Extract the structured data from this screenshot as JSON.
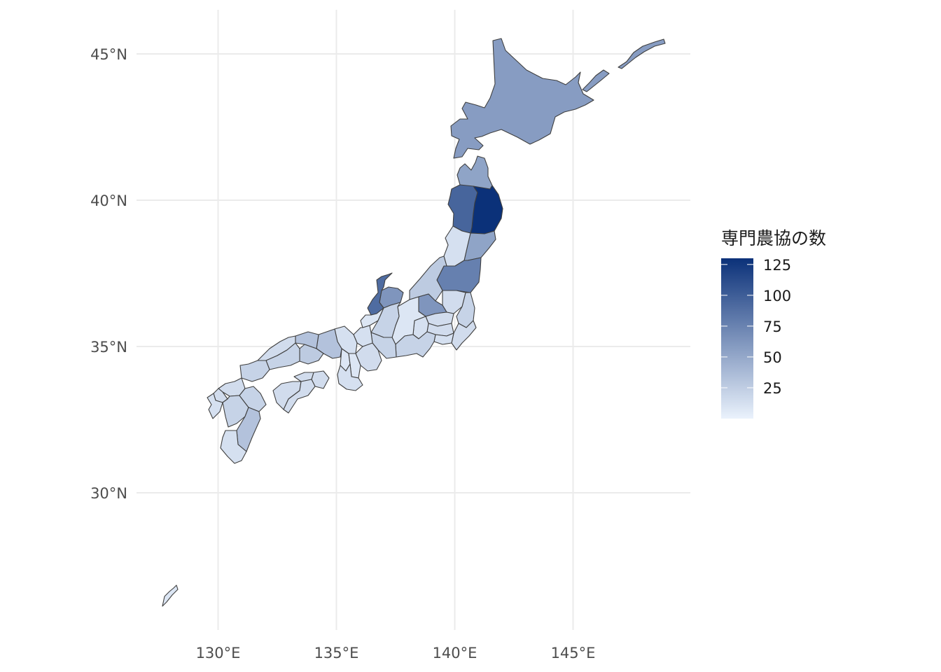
{
  "map": {
    "type": "choropleth",
    "region": "Japan",
    "projection": "equirectangular",
    "lon_range": [
      126.6,
      149.6
    ],
    "lat_range": [
      25.2,
      46.5
    ],
    "grid": true,
    "lon_ticks": [
      {
        "value": 130,
        "label": "130°E"
      },
      {
        "value": 135,
        "label": "135°E"
      },
      {
        "value": 140,
        "label": "140°E"
      },
      {
        "value": 145,
        "label": "145°E"
      }
    ],
    "lat_ticks": [
      {
        "value": 45,
        "label": "45°N"
      },
      {
        "value": 40,
        "label": "40°N"
      },
      {
        "value": 35,
        "label": "35°N"
      },
      {
        "value": 30,
        "label": "30°N"
      }
    ]
  },
  "legend": {
    "title": "専門農協の数",
    "position": "right",
    "min": 0,
    "max": 130,
    "low_color": "#eaf2fc",
    "high_color": "#0b3179",
    "ticks": [
      {
        "value": 125,
        "label": "125"
      },
      {
        "value": 100,
        "label": "100"
      },
      {
        "value": 75,
        "label": "75"
      },
      {
        "value": 50,
        "label": "50"
      },
      {
        "value": 25,
        "label": "25"
      }
    ]
  },
  "chart_data": {
    "type": "heatmap",
    "title": "",
    "legend_title": "専門農協の数",
    "values_by_prefecture": [
      {
        "name": "Hokkaido",
        "value": 50
      },
      {
        "name": "Aomori",
        "value": 45
      },
      {
        "name": "Iwate",
        "value": 130
      },
      {
        "name": "Akita",
        "value": 90
      },
      {
        "name": "Miyagi",
        "value": 45
      },
      {
        "name": "Yamagata",
        "value": 8
      },
      {
        "name": "Fukushima",
        "value": 70
      },
      {
        "name": "Niigata",
        "value": 20
      },
      {
        "name": "Ibaraki",
        "value": 15
      },
      {
        "name": "Tochigi",
        "value": 10
      },
      {
        "name": "Gunma",
        "value": 55
      },
      {
        "name": "Saitama",
        "value": 10
      },
      {
        "name": "Chiba",
        "value": 10
      },
      {
        "name": "Tokyo",
        "value": 10
      },
      {
        "name": "Kanagawa",
        "value": 8
      },
      {
        "name": "Yamanashi",
        "value": 8
      },
      {
        "name": "Nagano",
        "value": 5
      },
      {
        "name": "Toyama",
        "value": 55
      },
      {
        "name": "Ishikawa",
        "value": 85
      },
      {
        "name": "Fukui",
        "value": 5
      },
      {
        "name": "Gifu",
        "value": 15
      },
      {
        "name": "Shizuoka",
        "value": 15
      },
      {
        "name": "Aichi",
        "value": 15
      },
      {
        "name": "Mie",
        "value": 10
      },
      {
        "name": "Shiga",
        "value": 8
      },
      {
        "name": "Kyoto",
        "value": 8
      },
      {
        "name": "Osaka",
        "value": 5
      },
      {
        "name": "Hyogo",
        "value": 25
      },
      {
        "name": "Nara",
        "value": 5
      },
      {
        "name": "Wakayama",
        "value": 8
      },
      {
        "name": "Tottori",
        "value": 25
      },
      {
        "name": "Shimane",
        "value": 10
      },
      {
        "name": "Okayama",
        "value": 20
      },
      {
        "name": "Hiroshima",
        "value": 15
      },
      {
        "name": "Yamaguchi",
        "value": 15
      },
      {
        "name": "Tokushima",
        "value": 10
      },
      {
        "name": "Kagawa",
        "value": 10
      },
      {
        "name": "Ehime",
        "value": 10
      },
      {
        "name": "Kochi",
        "value": 10
      },
      {
        "name": "Fukuoka",
        "value": 10
      },
      {
        "name": "Saga",
        "value": 10
      },
      {
        "name": "Nagasaki",
        "value": 8
      },
      {
        "name": "Kumamoto",
        "value": 15
      },
      {
        "name": "Oita",
        "value": 15
      },
      {
        "name": "Miyazaki",
        "value": 25
      },
      {
        "name": "Kagoshima",
        "value": 8
      },
      {
        "name": "Okinawa",
        "value": 5
      }
    ]
  }
}
